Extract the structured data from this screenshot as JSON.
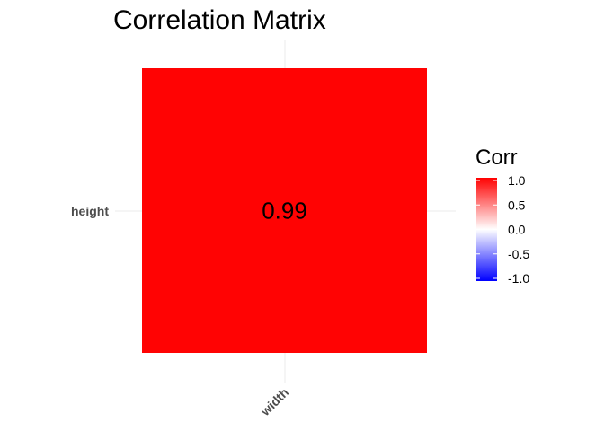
{
  "chart_data": {
    "type": "heatmap",
    "title": "Correlation Matrix",
    "x_categories": [
      "width"
    ],
    "y_categories": [
      "height"
    ],
    "cells": [
      {
        "x": "width",
        "y": "height",
        "value": 0.99,
        "label": "0.99"
      }
    ],
    "color_scale": {
      "low": "#0000ff",
      "mid": "#ffffff",
      "high": "#ff0000",
      "limits": [
        -1,
        1
      ]
    },
    "legend": {
      "title": "Corr",
      "position": "right",
      "ticks": [
        1.0,
        0.5,
        0.0,
        -0.5,
        -1.0
      ],
      "tick_labels": [
        "1.0",
        "0.5",
        "0.0",
        "-0.5",
        "-1.0"
      ]
    },
    "grid": true
  }
}
